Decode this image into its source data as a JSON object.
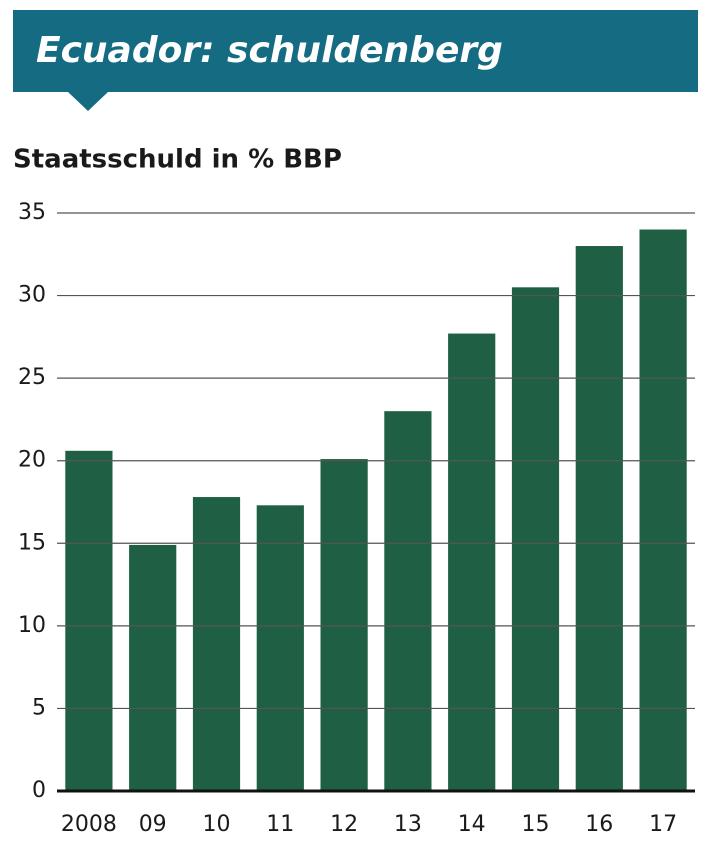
{
  "chart_data": {
    "type": "bar",
    "title": "Ecuador: schuldenberg",
    "subtitle": "Staatsschuld in % BBP",
    "categories": [
      "2008",
      "09",
      "10",
      "11",
      "12",
      "13",
      "14",
      "15",
      "16",
      "17"
    ],
    "values": [
      20.6,
      14.9,
      17.8,
      17.3,
      20.1,
      23.0,
      27.7,
      30.5,
      33.0,
      34.0
    ],
    "color": "#1f6044",
    "ylim": [
      0,
      35
    ],
    "yticks": [
      0,
      5,
      10,
      15,
      20,
      25,
      30,
      35
    ],
    "grid": true
  }
}
